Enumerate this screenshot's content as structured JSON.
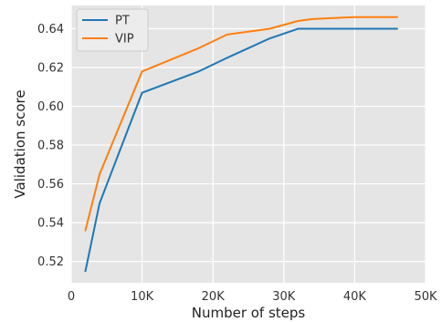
{
  "chart_data": {
    "type": "line",
    "title": "",
    "xlabel": "Number of steps",
    "ylabel": "Validation score",
    "xlim": [
      0,
      50000
    ],
    "ylim": [
      0.509,
      0.652
    ],
    "x_ticks": [
      0,
      10000,
      20000,
      30000,
      40000,
      50000
    ],
    "x_tick_labels": [
      "0",
      "10K",
      "20K",
      "30K",
      "40K",
      "50K"
    ],
    "y_ticks": [
      0.52,
      0.54,
      0.56,
      0.58,
      0.6,
      0.62,
      0.64
    ],
    "y_tick_labels": [
      "0.52",
      "0.54",
      "0.56",
      "0.58",
      "0.60",
      "0.62",
      "0.64"
    ],
    "grid": true,
    "legend_position": "top-left",
    "series": [
      {
        "name": "PT",
        "color": "#1f77b4",
        "x": [
          2000,
          4000,
          10000,
          18000,
          22000,
          28000,
          32000,
          36000,
          40000,
          46000
        ],
        "y": [
          0.515,
          0.55,
          0.607,
          0.618,
          0.625,
          0.635,
          0.64,
          0.64,
          0.64,
          0.64
        ]
      },
      {
        "name": "VIP",
        "color": "#ff7f0e",
        "x": [
          2000,
          4000,
          10000,
          18000,
          22000,
          28000,
          32000,
          34000,
          40000,
          46000
        ],
        "y": [
          0.536,
          0.565,
          0.618,
          0.63,
          0.637,
          0.64,
          0.644,
          0.645,
          0.646,
          0.646
        ]
      }
    ]
  }
}
